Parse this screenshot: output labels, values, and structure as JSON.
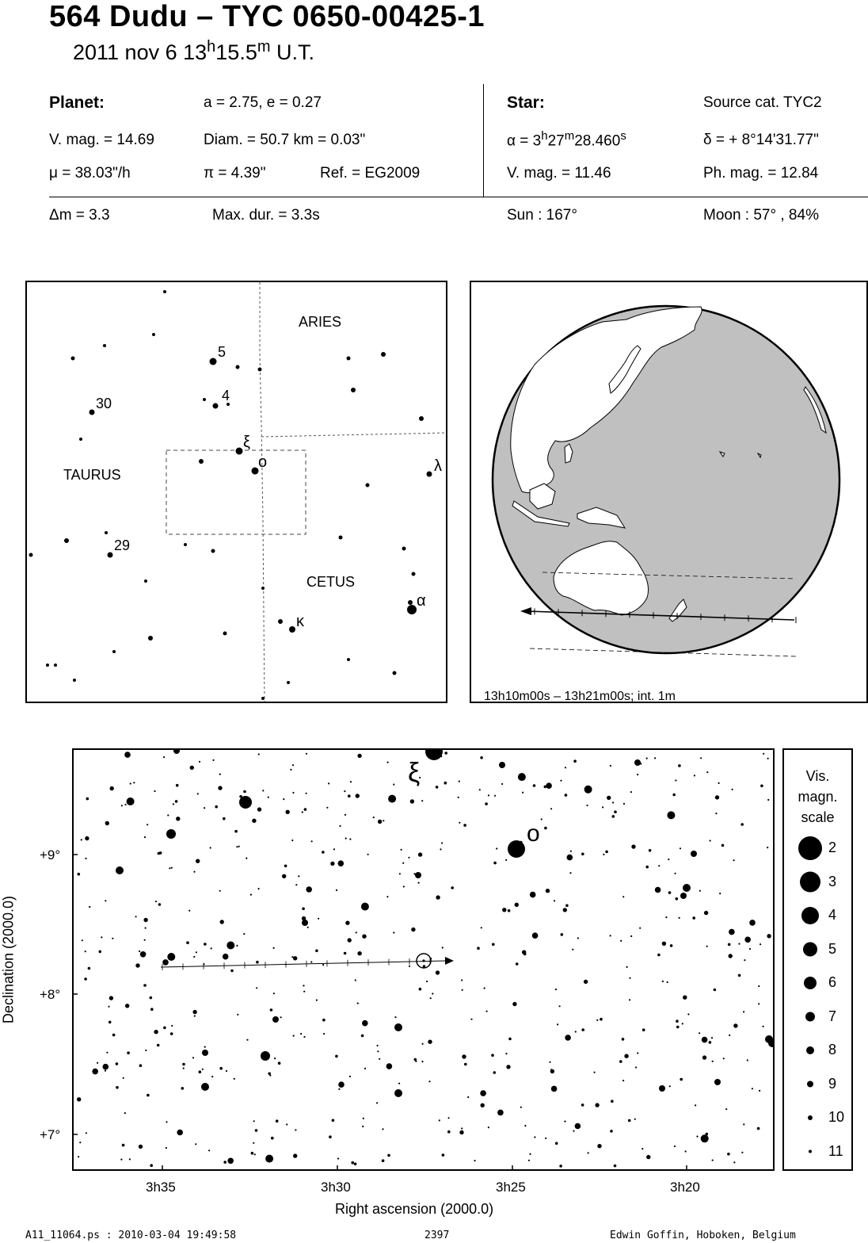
{
  "header": {
    "title": "564 Dudu  –  TYC 0650-00425-1",
    "date": "2011 nov  6  13",
    "time_h": "h",
    "time_min": "15.5",
    "time_m": "m",
    "time_ut": " U.T."
  },
  "planet": {
    "label": "Planet:",
    "orbit": "a = 2.75, e = 0.27",
    "vmag": "V. mag. = 14.69",
    "diam": "Diam. = 50.7 km = 0.03\"",
    "mu": "μ =  38.03\"/h",
    "pi": "π =  4.39\"",
    "ref": "Ref. = EG2009"
  },
  "star": {
    "label": "Star:",
    "source": "Source cat.  TYC2",
    "alpha_prefix": "α =  3",
    "alpha_h": "h",
    "alpha_min": "27",
    "alpha_m": "m",
    "alpha_sec": "28.460",
    "alpha_s": "s",
    "delta": "δ = + 8°14'31.77\"",
    "vmag": "V. mag. = 11.46",
    "phmag": "Ph. mag. = 12.84"
  },
  "event": {
    "dm": "Δm = 3.3",
    "maxdur": "Max. dur. = 3.3s",
    "sun": "Sun : 167°",
    "moon": "Moon :  57° , 84%"
  },
  "finder": {
    "constellations": [
      "ARIES",
      "TAURUS",
      "CETUS"
    ],
    "star_labels": [
      "5",
      "4",
      "30",
      "29",
      "ξ",
      "o",
      "λ",
      "α",
      "κ"
    ]
  },
  "globe": {
    "caption": "13h10m00s – 13h21m00s; int.  1m",
    "colors": {
      "land": "#ffffff",
      "ocean": "#c0c0c0",
      "outline": "#000000"
    }
  },
  "chart_data": {
    "type": "scatter",
    "xlabel": "Right ascension (2000.0)",
    "ylabel": "Declination (2000.0)",
    "x_ticks": [
      "3h35",
      "3h30",
      "3h25",
      "3h20"
    ],
    "y_ticks": [
      "+9°",
      "+8°",
      "+7°"
    ],
    "labeled_stars": [
      {
        "name": "ξ",
        "ra": "3h27m",
        "dec": 9.73,
        "mag": 3.7
      },
      {
        "name": "o",
        "ra": "3h24m49s",
        "dec": 9.03,
        "mag": 3.6
      }
    ],
    "target_star": {
      "ra": "3h27m28.46s",
      "dec": 8.242
    },
    "asteroid_path": {
      "start_ra": "3h35m",
      "end_ra": "3h26m",
      "dec_start": 8.21,
      "dec_end": 8.24
    }
  },
  "legend": {
    "title": [
      "Vis.",
      "magn.",
      "scale"
    ],
    "mags": [
      "2",
      "3",
      "4",
      "5",
      "6",
      "7",
      "8",
      "9",
      "10",
      "11"
    ]
  },
  "footer": {
    "left": "A11_11064.ps : 2010-03-04 19:49:58",
    "center": "2397",
    "right": "Edwin Goffin, Hoboken, Belgium"
  }
}
